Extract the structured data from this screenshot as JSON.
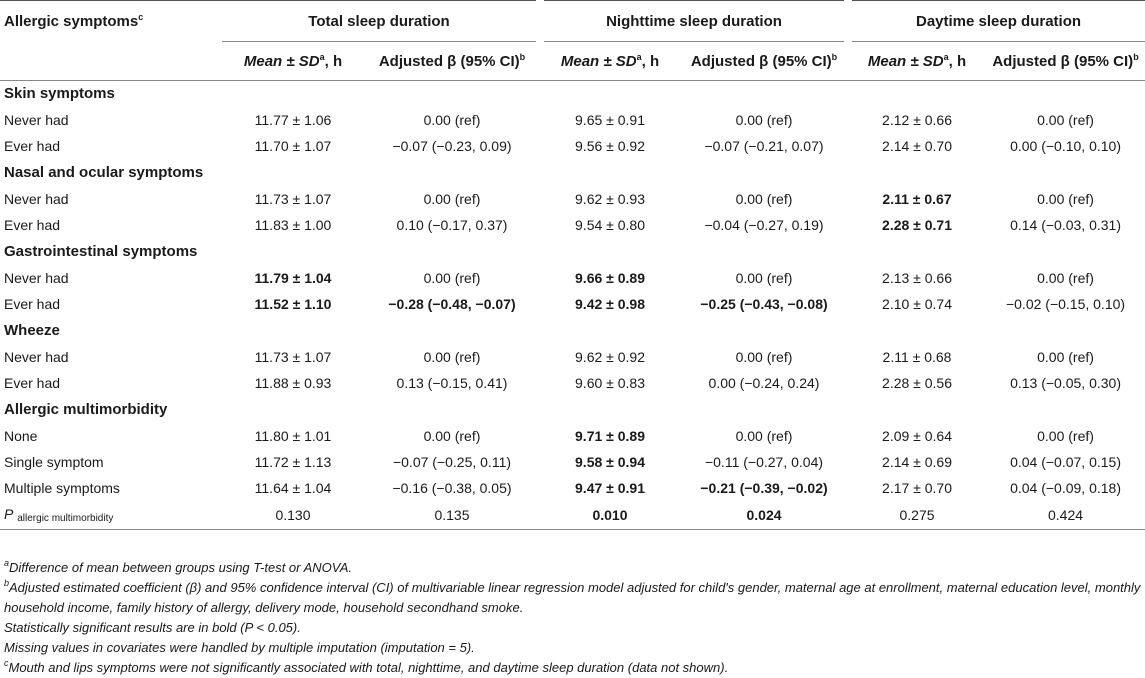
{
  "header": {
    "row_label": "Allergic symptoms",
    "row_label_sup": "c",
    "groups": [
      "Total sleep duration",
      "Nighttime sleep duration",
      "Daytime sleep duration"
    ],
    "mean_label": "Mean ± SD",
    "mean_sup": "a",
    "mean_unit": ", h",
    "beta_label": "Adjusted β (95% CI)",
    "beta_sup": "b"
  },
  "rows": [
    {
      "type": "category",
      "label": "Skin symptoms"
    },
    {
      "type": "data",
      "label": "Never had",
      "cells": [
        "11.77 ± 1.06",
        "0.00 (ref)",
        "9.65 ± 0.91",
        "0.00 (ref)",
        "2.12 ± 0.66",
        "0.00 (ref)"
      ],
      "bold": [
        false,
        false,
        false,
        false,
        false,
        false
      ]
    },
    {
      "type": "data",
      "label": "Ever had",
      "cells": [
        "11.70 ± 1.07",
        "−0.07 (−0.23, 0.09)",
        "9.56 ± 0.92",
        "−0.07 (−0.21, 0.07)",
        "2.14 ± 0.70",
        "0.00 (−0.10, 0.10)"
      ],
      "bold": [
        false,
        false,
        false,
        false,
        false,
        false
      ]
    },
    {
      "type": "category",
      "label": "Nasal and ocular symptoms"
    },
    {
      "type": "data",
      "label": "Never had",
      "cells": [
        "11.73 ± 1.07",
        "0.00 (ref)",
        "9.62 ± 0.93",
        "0.00 (ref)",
        "2.11 ± 0.67",
        "0.00 (ref)"
      ],
      "bold": [
        false,
        false,
        false,
        false,
        true,
        false
      ]
    },
    {
      "type": "data",
      "label": "Ever had",
      "cells": [
        "11.83 ± 1.00",
        "0.10 (−0.17, 0.37)",
        "9.54 ± 0.80",
        "−0.04 (−0.27, 0.19)",
        "2.28 ± 0.71",
        "0.14 (−0.03, 0.31)"
      ],
      "bold": [
        false,
        false,
        false,
        false,
        true,
        false
      ]
    },
    {
      "type": "category",
      "label": "Gastrointestinal symptoms"
    },
    {
      "type": "data",
      "label": "Never had",
      "cells": [
        "11.79 ± 1.04",
        "0.00 (ref)",
        "9.66 ± 0.89",
        "0.00 (ref)",
        "2.13 ± 0.66",
        "0.00 (ref)"
      ],
      "bold": [
        true,
        false,
        true,
        false,
        false,
        false
      ]
    },
    {
      "type": "data",
      "label": "Ever had",
      "cells": [
        "11.52 ± 1.10",
        "−0.28 (−0.48, −0.07)",
        "9.42 ± 0.98",
        "−0.25 (−0.43, −0.08)",
        "2.10 ± 0.74",
        "−0.02 (−0.15, 0.10)"
      ],
      "bold": [
        true,
        true,
        true,
        true,
        false,
        false
      ]
    },
    {
      "type": "category",
      "label": "Wheeze"
    },
    {
      "type": "data",
      "label": "Never had",
      "cells": [
        "11.73 ± 1.07",
        "0.00 (ref)",
        "9.62 ± 0.92",
        "0.00 (ref)",
        "2.11 ± 0.68",
        "0.00 (ref)"
      ],
      "bold": [
        false,
        false,
        false,
        false,
        false,
        false
      ]
    },
    {
      "type": "data",
      "label": "Ever had",
      "cells": [
        "11.88 ± 0.93",
        "0.13 (−0.15, 0.41)",
        "9.60 ± 0.83",
        "0.00 (−0.24, 0.24)",
        "2.28 ± 0.56",
        "0.13 (−0.05, 0.30)"
      ],
      "bold": [
        false,
        false,
        false,
        false,
        false,
        false
      ]
    },
    {
      "type": "category",
      "label": "Allergic multimorbidity"
    },
    {
      "type": "data",
      "label": "None",
      "cells": [
        "11.80 ± 1.01",
        "0.00 (ref)",
        "9.71 ± 0.89",
        "0.00 (ref)",
        "2.09 ± 0.64",
        "0.00 (ref)"
      ],
      "bold": [
        false,
        false,
        true,
        false,
        false,
        false
      ]
    },
    {
      "type": "data",
      "label": "Single symptom",
      "cells": [
        "11.72 ± 1.13",
        "−0.07 (−0.25, 0.11)",
        "9.58 ± 0.94",
        "−0.11 (−0.27, 0.04)",
        "2.14 ± 0.69",
        "0.04 (−0.07, 0.15)"
      ],
      "bold": [
        false,
        false,
        true,
        false,
        false,
        false
      ]
    },
    {
      "type": "data",
      "label": "Multiple symptoms",
      "cells": [
        "11.64 ± 1.04",
        "−0.16 (−0.38, 0.05)",
        "9.47 ± 0.91",
        "−0.21 (−0.39, −0.02)",
        "2.17 ± 0.70",
        "0.04 (−0.09, 0.18)"
      ],
      "bold": [
        false,
        false,
        true,
        true,
        false,
        false
      ]
    },
    {
      "type": "pvalue",
      "label": "P",
      "label_sub": "allergic multimorbidity",
      "cells": [
        "0.130",
        "0.135",
        "0.010",
        "0.024",
        "0.275",
        "0.424"
      ],
      "bold": [
        false,
        false,
        true,
        true,
        false,
        false
      ]
    }
  ],
  "footnotes": [
    {
      "sup": "a",
      "text": "Difference of mean between groups using T-test or ANOVA."
    },
    {
      "sup": "b",
      "text": "Adjusted estimated coefficient (β) and 95% confidence interval (CI) of multivariable linear regression model adjusted for child's gender, maternal age at enrollment, maternal education level, monthly household income, family history of allergy, delivery mode, household secondhand smoke."
    },
    {
      "sup": "",
      "text": "Statistically significant results are in bold (P < 0.05)."
    },
    {
      "sup": "",
      "text": "Missing values in covariates were handled by multiple imputation (imputation = 5)."
    },
    {
      "sup": "c",
      "text": "Mouth and lips symptoms were not significantly associated with total, nighttime, and daytime sleep duration (data not shown)."
    }
  ]
}
